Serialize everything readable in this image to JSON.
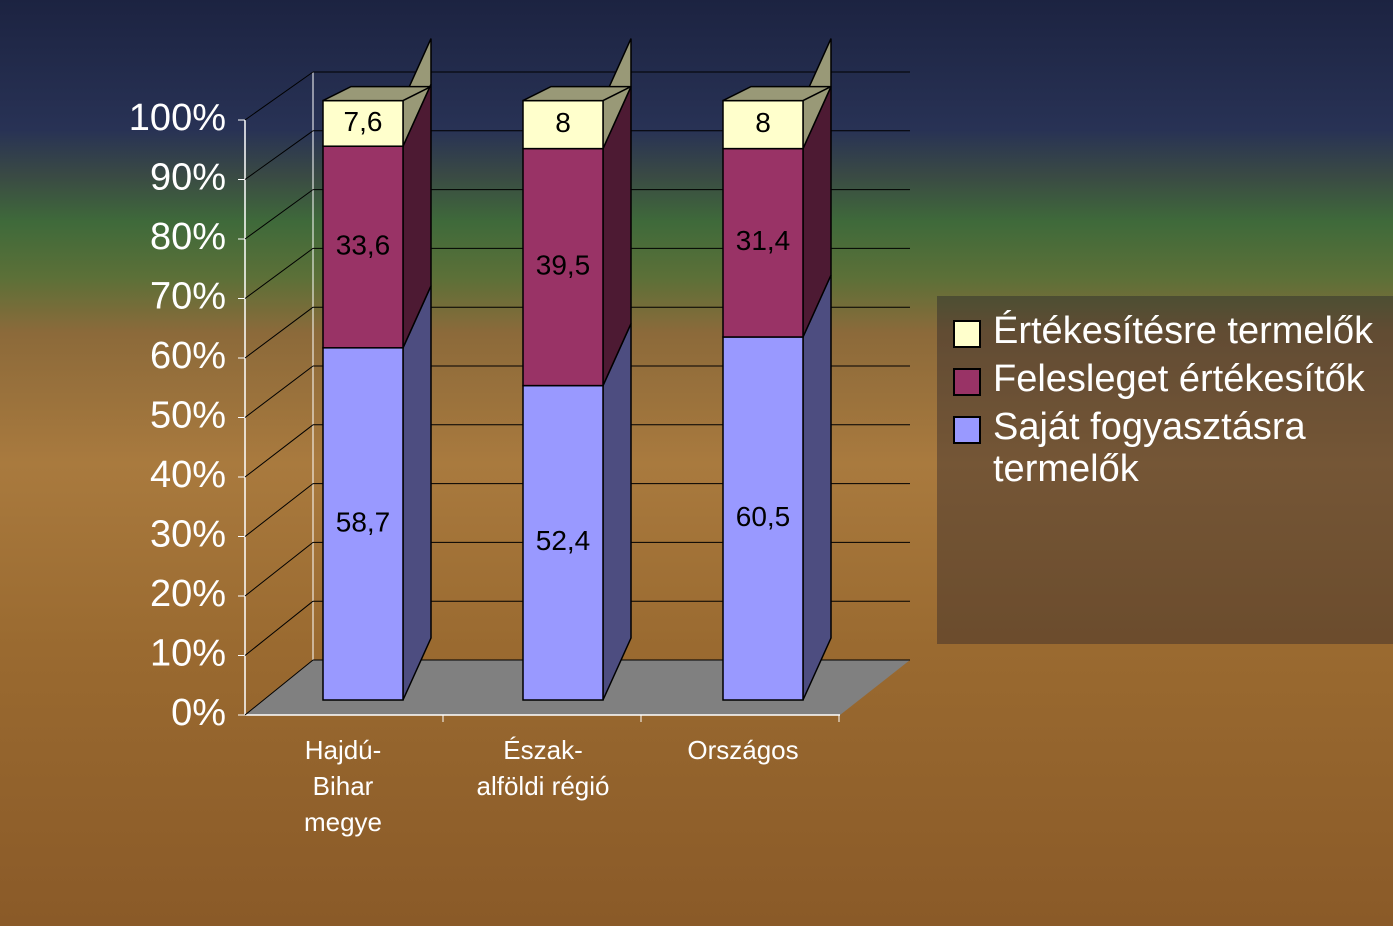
{
  "chart_data": {
    "type": "stacked-bar-3d",
    "categories": [
      [
        "Hajdú-",
        "Bihar",
        "megye"
      ],
      [
        "Észak-",
        "alföldi régió"
      ],
      [
        "Országos"
      ]
    ],
    "series": [
      {
        "name": "Saját fogyasztásra termelők",
        "color": "#9999ff",
        "side": "#4d4d80",
        "values": [
          58.7,
          52.4,
          60.5
        ],
        "value_labels": [
          "58,7",
          "52,4",
          "60,5"
        ]
      },
      {
        "name": "Felesleget értékesítők",
        "color": "#993366",
        "side": "#4d1a33",
        "values": [
          33.6,
          39.5,
          31.4
        ],
        "value_labels": [
          "33,6",
          "39,5",
          "31,4"
        ]
      },
      {
        "name": "Értékesítésre termelők",
        "color": "#ffffcc",
        "side": "#999977",
        "values": [
          7.6,
          8,
          8
        ],
        "value_labels": [
          "7,6",
          "8",
          "8"
        ]
      }
    ],
    "ylim": [
      0,
      100
    ],
    "yticks": [
      {
        "value": 0,
        "label": "0%"
      },
      {
        "value": 10,
        "label": "10%"
      },
      {
        "value": 20,
        "label": "20%"
      },
      {
        "value": 30,
        "label": "30%"
      },
      {
        "value": 40,
        "label": "40%"
      },
      {
        "value": 50,
        "label": "50%"
      },
      {
        "value": 60,
        "label": "60%"
      },
      {
        "value": 70,
        "label": "70%"
      },
      {
        "value": 80,
        "label": "80%"
      },
      {
        "value": 90,
        "label": "90%"
      },
      {
        "value": 100,
        "label": "100%"
      }
    ],
    "grid": true,
    "legend": "right"
  }
}
